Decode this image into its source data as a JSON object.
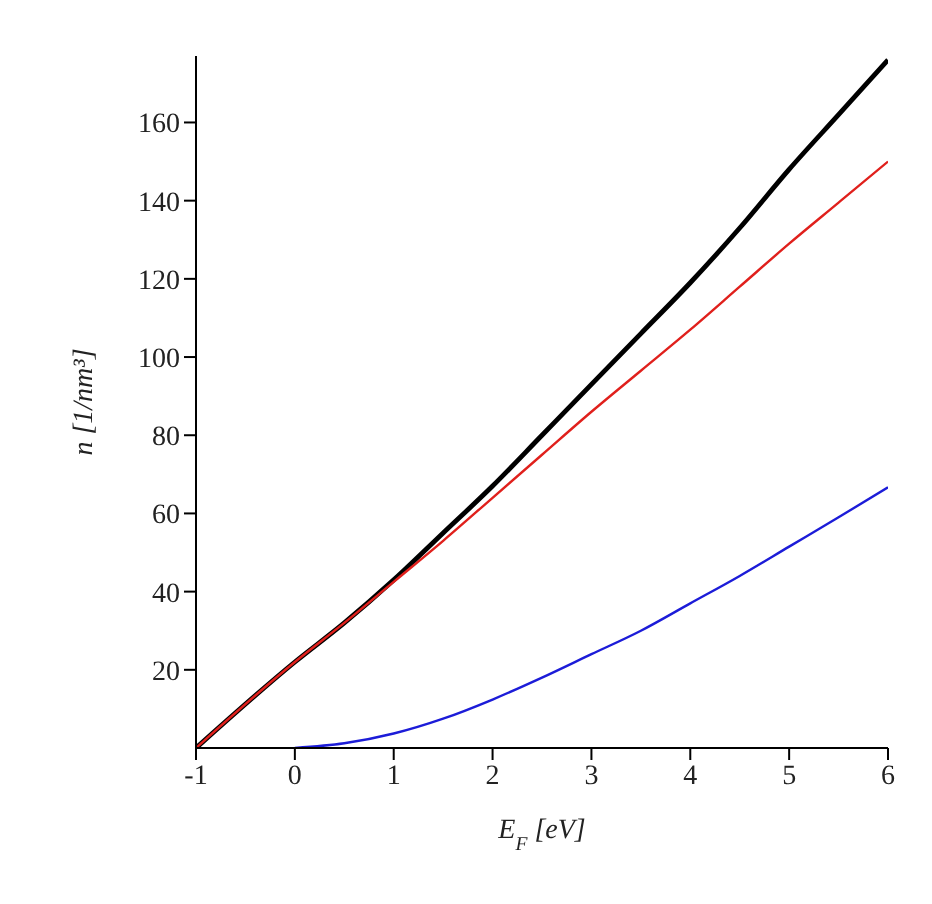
{
  "chart_data": {
    "type": "line",
    "xlabel": "E$_{F}$ [eV]",
    "ylabel": "n [1/nm³]",
    "xlim": [
      -1,
      6
    ],
    "ylim": [
      0,
      177
    ],
    "xticks": [
      -1,
      0,
      1,
      2,
      3,
      4,
      5,
      6
    ],
    "yticks": [
      20,
      40,
      60,
      80,
      100,
      120,
      140,
      160
    ],
    "marker": "none",
    "line_style": "solid",
    "series": [
      {
        "color": "#000000",
        "x": [
          -1,
          0,
          0.5,
          1,
          1.5,
          2,
          2.5,
          3,
          3.5,
          4,
          4.5,
          5,
          5.5,
          6
        ],
        "values": [
          0,
          22,
          32,
          43,
          55,
          67,
          80,
          93,
          106,
          119,
          133,
          148,
          162,
          176
        ]
      },
      {
        "color": "#e0201c",
        "x": [
          -1,
          0,
          0.5,
          1,
          1.5,
          2,
          2.5,
          3,
          3.5,
          4,
          4.5,
          5,
          5.5,
          6
        ],
        "values": [
          0,
          22,
          32,
          42.5,
          53,
          64,
          75,
          86,
          96.5,
          107,
          118,
          129,
          139.5,
          150
        ]
      },
      {
        "color": "#1c1cd8",
        "x": [
          0,
          0.5,
          1,
          1.5,
          2,
          2.5,
          3,
          3.5,
          4,
          4.5,
          5,
          5.5,
          6
        ],
        "values": [
          0,
          1.2,
          3.7,
          7.5,
          12.4,
          18,
          24,
          30,
          37,
          44,
          51.5,
          59,
          66.7
        ]
      }
    ]
  }
}
